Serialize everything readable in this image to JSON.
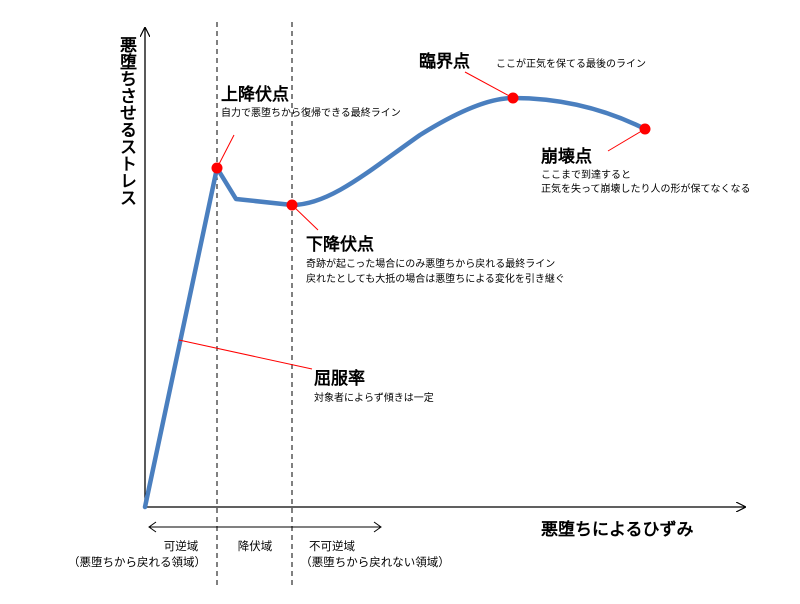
{
  "axes": {
    "y_label": "悪堕ちさせるストレス",
    "x_label": "悪堕ちによるひずみ"
  },
  "points": {
    "upper_yield": {
      "title": "上降伏点",
      "note": "自力で悪堕ちから復帰できる最終ライン"
    },
    "lower_yield": {
      "title": "下降伏点",
      "note_lines": [
        "奇跡が起こった場合にのみ悪堕ちから戻れる最終ライン",
        "戻れたとしても大抵の場合は悪堕ちによる変化を引き継ぐ"
      ]
    },
    "critical": {
      "title": "臨界点",
      "note": "ここが正気を保てる最後のライン"
    },
    "collapse": {
      "title": "崩壊点",
      "note_lines": [
        "ここまで到達すると",
        "正気を失って崩壊したり人の形が保てなくなる"
      ]
    },
    "yield_ratio": {
      "title": "屈服率",
      "note": "対象者によらず傾きは一定"
    }
  },
  "regions": {
    "reversible": {
      "label": "可逆域",
      "sub": "（悪堕ちから戻れる領域）"
    },
    "yield": {
      "label": "降伏域"
    },
    "irreversible": {
      "label": "不可逆域",
      "sub": "（悪堕ちから戻れない領域）"
    }
  },
  "colors": {
    "curve": "#4a7fbf",
    "marker": "#ff0000",
    "leader": "#ff0000",
    "axis": "#000000"
  }
}
